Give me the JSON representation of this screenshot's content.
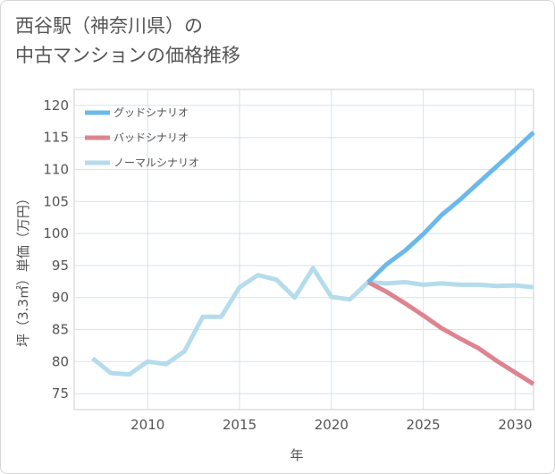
{
  "page": {
    "title_line1": "西谷駅（神奈川県）の",
    "title_line2": "中古マンションの価格推移"
  },
  "chart_data": {
    "type": "line",
    "title": "西谷駅（神奈川県）の中古マンションの価格推移",
    "xlabel": "年",
    "ylabel": "坪（3.3㎡）単価（万円）",
    "xlim": [
      2006,
      2031
    ],
    "ylim": [
      72.5,
      122.5
    ],
    "xticks": [
      2010,
      2015,
      2020,
      2025,
      2030
    ],
    "yticks": [
      75,
      80,
      85,
      90,
      95,
      100,
      105,
      110,
      115,
      120
    ],
    "grid": true,
    "legend_position": "top-left",
    "series": [
      {
        "name": "グッドシナリオ",
        "color": "#6bb9ea",
        "x": [
          2022,
          2023,
          2024,
          2025,
          2026,
          2027,
          2028,
          2029,
          2030,
          2031
        ],
        "values": [
          92.4,
          95.2,
          97.3,
          99.9,
          102.9,
          105.3,
          107.9,
          110.5,
          113.1,
          115.8
        ]
      },
      {
        "name": "バッドシナリオ",
        "color": "#de8490",
        "x": [
          2022,
          2023,
          2024,
          2025,
          2026,
          2027,
          2028,
          2029,
          2030,
          2031
        ],
        "values": [
          92.4,
          90.9,
          89.1,
          87.2,
          85.2,
          83.6,
          82.1,
          80.1,
          78.3,
          76.5
        ]
      },
      {
        "name": "ノーマルシナリオ",
        "color": "#b5dcec",
        "x": [
          2007,
          2008,
          2009,
          2010,
          2011,
          2012,
          2013,
          2014,
          2015,
          2016,
          2017,
          2018,
          2019,
          2020,
          2021,
          2022,
          2023,
          2024,
          2025,
          2026,
          2027,
          2028,
          2029,
          2030,
          2031
        ],
        "values": [
          80.5,
          78.2,
          78.0,
          80.0,
          79.6,
          81.6,
          87.0,
          87.0,
          91.6,
          93.5,
          92.8,
          90.0,
          94.6,
          90.1,
          89.7,
          92.4,
          92.2,
          92.4,
          92.0,
          92.2,
          92.0,
          92.0,
          91.8,
          91.9,
          91.6
        ]
      }
    ]
  }
}
